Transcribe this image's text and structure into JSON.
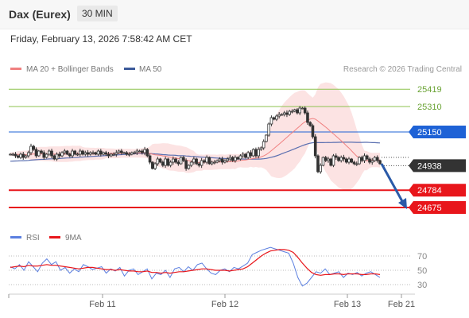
{
  "header": {
    "instrument": "Dax (Eurex)",
    "interval": "30 MIN"
  },
  "timestamp": "Friday, February 13, 2026 7:58:42 AM CET",
  "legend": {
    "ma20": "MA 20 + Bollinger Bands",
    "ma50": "MA 50",
    "credit": "Research © 2026 Trading Central"
  },
  "rsi_legend": {
    "rsi": "RSI",
    "ma9": "9MA"
  },
  "colors": {
    "resistance": "#8ec34f",
    "pivot": "#1e62d6",
    "support": "#e8161b",
    "last": "#333333",
    "candle": "#333333",
    "ma20": "#f08080",
    "ma50": "#5a6fb0",
    "band_fill": "#fbd9d9",
    "rsi": "#5b7fe0",
    "rsi_ma": "#e8161b",
    "forecast_arrow": "#2a5aa8"
  },
  "chart_data": [
    {
      "type": "candlestick",
      "title": "",
      "ylim": [
        24580,
        25480
      ],
      "x_ticks": [
        "Feb 11",
        "Feb 12",
        "Feb 13",
        "Feb 21"
      ],
      "levels": [
        {
          "value": 25419,
          "label": "25419",
          "kind": "resistance"
        },
        {
          "value": 25310,
          "label": "25310",
          "kind": "resistance"
        },
        {
          "value": 25150,
          "label": "25150",
          "kind": "pivot"
        },
        {
          "value": 24938,
          "label": "24938",
          "kind": "last"
        },
        {
          "value": 24784,
          "label": "24784",
          "kind": "support"
        },
        {
          "value": 24675,
          "label": "24675",
          "kind": "support"
        }
      ],
      "close_series": [
        25010,
        25010,
        25000,
        24990,
        25010,
        24990,
        25000,
        25020,
        25060,
        25040,
        25000,
        25030,
        25020,
        24990,
        25010,
        25030,
        25000,
        24980,
        25010,
        25000,
        25020,
        25030,
        25010,
        25000,
        25030,
        25010,
        25010,
        25030,
        25010,
        25020,
        25010,
        25020,
        25020,
        25010,
        25030,
        25010,
        25020,
        25010,
        25000,
        25010,
        25010,
        25020,
        25030,
        25020,
        25020,
        25010,
        25010,
        25020,
        25020,
        25030,
        25030,
        25020,
        25040,
        25000,
        24960,
        24920,
        24950,
        24980,
        24960,
        24940,
        24980,
        24940,
        24960,
        24980,
        24960,
        24950,
        24990,
        24970,
        24920,
        24940,
        24960,
        24980,
        24950,
        24940,
        24970,
        24960,
        24990,
        24950,
        24960,
        24960,
        24970,
        24980,
        24960,
        24970,
        24980,
        24990,
        24970,
        24990,
        24980,
        25000,
        25010,
        24990,
        25020,
        25000,
        25040,
        25000,
        25040,
        25050,
        25090,
        25130,
        25200,
        25240,
        25230,
        25250,
        25260,
        25260,
        25270,
        25260,
        25280,
        25280,
        25290,
        25270,
        25300,
        25300,
        25270,
        25210,
        25190,
        25120,
        25000,
        24900,
        24940,
        24990,
        24970,
        24980,
        24940,
        25000,
        24990,
        24970,
        24990,
        24980,
        24960,
        24980,
        24960,
        24950,
        24950,
        24990,
        24970,
        25000,
        24980,
        24960,
        24970,
        24990,
        24970,
        24950
      ],
      "forecast": {
        "from": 24950,
        "to": 24675
      },
      "ma20_start": 25010,
      "ma50_start": 24965
    },
    {
      "type": "line",
      "title": "",
      "ylim": [
        20,
        80
      ],
      "y_ticks": [
        70,
        50,
        30
      ],
      "series": [
        {
          "name": "RSI",
          "values": [
            55,
            52,
            58,
            50,
            62,
            55,
            48,
            60,
            66,
            58,
            62,
            50,
            54,
            46,
            52,
            48,
            58,
            55,
            51,
            53,
            55,
            46,
            52,
            49,
            54,
            42,
            50,
            52,
            44,
            48,
            52,
            38,
            46,
            44,
            50,
            40,
            52,
            54,
            48,
            55,
            50,
            58,
            60,
            52,
            46,
            44,
            50,
            52,
            48,
            54,
            52,
            56,
            60,
            72,
            75,
            78,
            80,
            82,
            80,
            78,
            76,
            74,
            60,
            40,
            28,
            32,
            40,
            48,
            46,
            52,
            44,
            46,
            48,
            40,
            46,
            44,
            47,
            42,
            46,
            48,
            44,
            40
          ]
        },
        {
          "name": "9MA",
          "values": [
            54,
            55,
            56,
            55,
            57,
            56,
            56,
            57,
            58,
            57,
            57,
            56,
            55,
            54,
            53,
            52,
            53,
            54,
            54,
            53,
            52,
            51,
            51,
            50,
            51,
            50,
            49,
            49,
            48,
            48,
            49,
            47,
            47,
            46,
            47,
            46,
            47,
            48,
            48,
            49,
            50,
            51,
            52,
            52,
            51,
            50,
            50,
            50,
            49,
            50,
            51,
            52,
            55,
            60,
            65,
            70,
            74,
            77,
            78,
            79,
            79,
            78,
            75,
            68,
            60,
            53,
            47,
            44,
            43,
            44,
            44,
            45,
            45,
            44,
            45,
            45,
            45,
            44,
            44,
            45,
            45,
            44
          ]
        }
      ]
    }
  ]
}
